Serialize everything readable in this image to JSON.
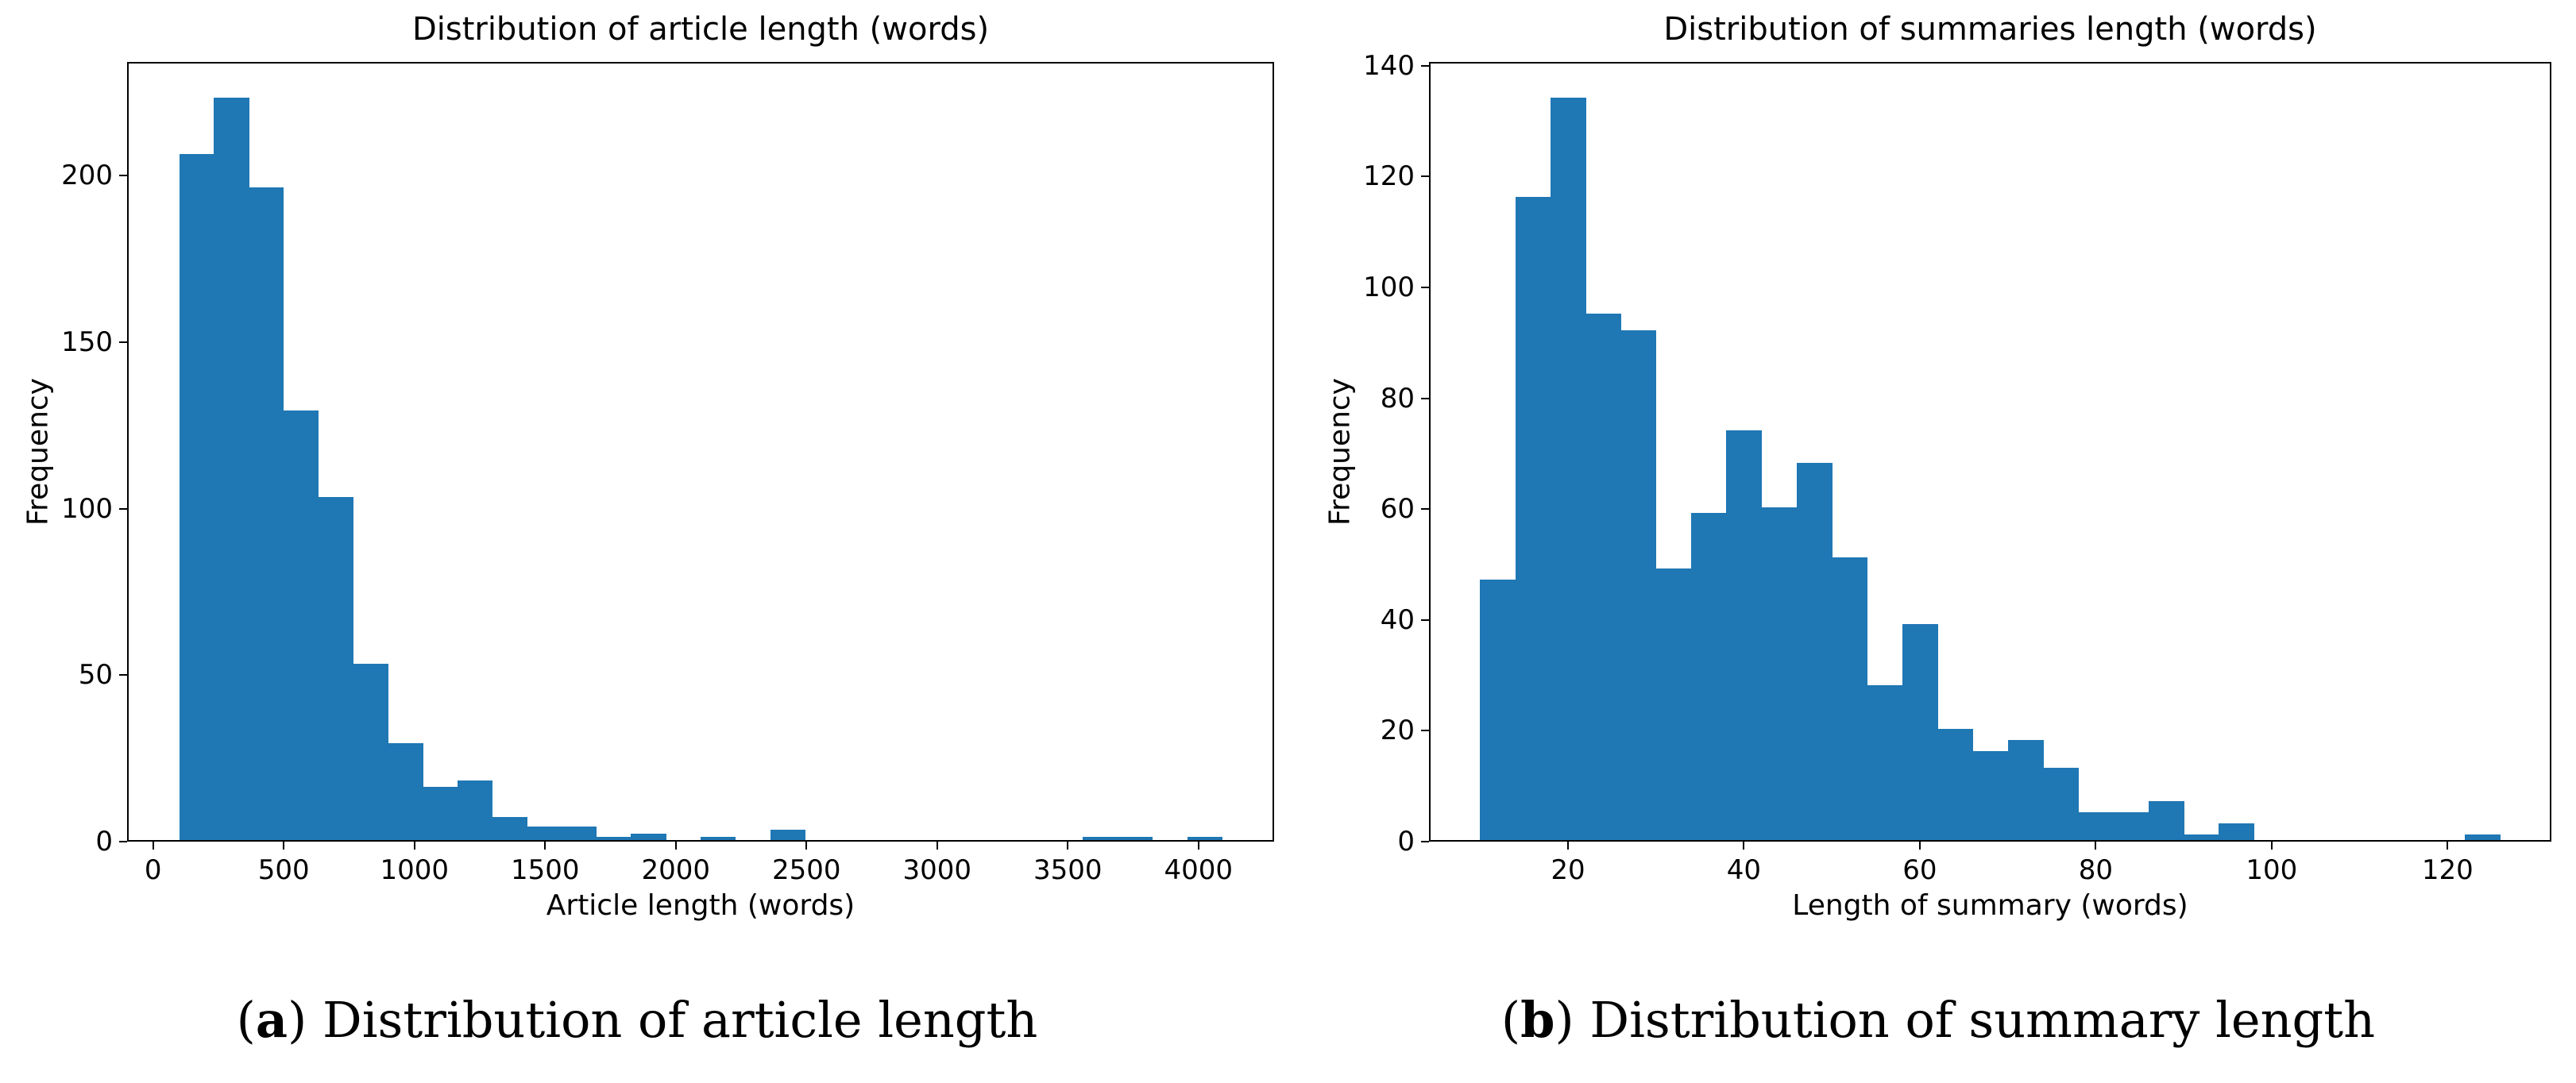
{
  "figure": {
    "background": "#ffffff",
    "captions": [
      {
        "open": "(",
        "label": "a",
        "close": ")",
        "text": " Distribution of article length"
      },
      {
        "open": "(",
        "label": "b",
        "close": ")",
        "text": " Distribution of summary length"
      }
    ]
  },
  "chart_data": [
    {
      "type": "bar",
      "subtype": "histogram",
      "title": "Distribution of article length (words)",
      "xlabel": "Article length (words)",
      "ylabel": "Frequency",
      "bar_color": "#1f77b4",
      "bin_start": 100,
      "bin_width": 133,
      "frequencies": [
        206,
        223,
        196,
        129,
        103,
        53,
        29,
        16,
        18,
        7,
        4,
        4,
        1,
        2,
        0,
        1,
        0,
        3,
        0,
        0,
        0,
        0,
        0,
        0,
        0,
        0,
        1,
        1,
        0,
        1
      ],
      "xticks": [
        0,
        500,
        1000,
        1500,
        2000,
        2500,
        3000,
        3500,
        4000
      ],
      "yticks": [
        0,
        50,
        100,
        150,
        200
      ],
      "xlim": [
        -99.5,
        4289.5
      ],
      "ylim": [
        0,
        234.2
      ],
      "grid": false,
      "legend": null
    },
    {
      "type": "bar",
      "subtype": "histogram",
      "title": "Distribution of summaries length (words)",
      "xlabel": "Length of summary (words)",
      "ylabel": "Frequency",
      "bar_color": "#1f77b4",
      "bin_start": 10,
      "bin_width": 4,
      "frequencies": [
        47,
        116,
        134,
        95,
        92,
        49,
        59,
        74,
        60,
        68,
        51,
        28,
        39,
        20,
        16,
        18,
        13,
        5,
        5,
        7,
        1,
        3,
        0,
        0,
        0,
        0,
        0,
        0,
        1
      ],
      "xticks": [
        20,
        40,
        60,
        80,
        100,
        120
      ],
      "yticks": [
        0,
        20,
        40,
        60,
        80,
        100,
        120,
        140
      ],
      "xlim": [
        4.2,
        131.8
      ],
      "ylim": [
        0,
        140.7
      ],
      "grid": false,
      "legend": null
    }
  ]
}
